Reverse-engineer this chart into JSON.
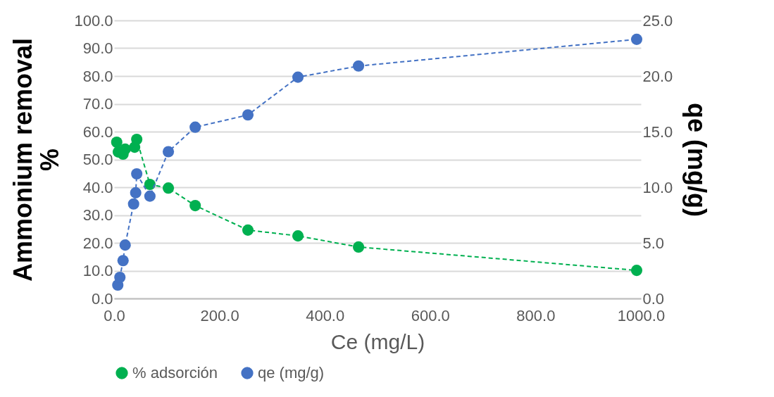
{
  "chart_data": {
    "type": "line",
    "xlabel": "Ce (mg/L)",
    "ylabel": "Ammonium removal\n%",
    "y2label": "qe (mg/g)",
    "xlim": [
      0,
      1000
    ],
    "xticks": [
      {
        "value": 0,
        "label": "0.0"
      },
      {
        "value": 200,
        "label": "200.0"
      },
      {
        "value": 400,
        "label": "400.0"
      },
      {
        "value": 600,
        "label": "600.0"
      },
      {
        "value": 800,
        "label": "800.0"
      },
      {
        "value": 1000,
        "label": "1000.0"
      }
    ],
    "ylim": [
      0,
      100
    ],
    "yticks": [
      {
        "value": 0,
        "label": "0.0"
      },
      {
        "value": 10,
        "label": "10.0"
      },
      {
        "value": 20,
        "label": "20.0"
      },
      {
        "value": 30,
        "label": "30.0"
      },
      {
        "value": 40,
        "label": "40.0"
      },
      {
        "value": 50,
        "label": "50.0"
      },
      {
        "value": 60,
        "label": "60.0"
      },
      {
        "value": 70,
        "label": "70.0"
      },
      {
        "value": 80,
        "label": "80.0"
      },
      {
        "value": 90,
        "label": "90.0"
      },
      {
        "value": 100,
        "label": "100.0"
      }
    ],
    "y2lim": [
      0,
      25
    ],
    "y2ticks": [
      {
        "value": 0,
        "label": "0.0"
      },
      {
        "value": 5,
        "label": "5.0"
      },
      {
        "value": 10,
        "label": "10.0"
      },
      {
        "value": 15,
        "label": "15.0"
      },
      {
        "value": 20,
        "label": "20.0"
      },
      {
        "value": 25,
        "label": "25.0"
      }
    ],
    "grid": "y",
    "legend": "bottom",
    "marker": "circle",
    "line_style": "dashed",
    "series": [
      {
        "name": "% adsorción",
        "color": "#00b050",
        "x": [
          5,
          8,
          17,
          21,
          39,
          43,
          68,
          103,
          154,
          254,
          349,
          464,
          992
        ],
        "values": [
          56.2,
          52.7,
          51.9,
          53.7,
          54.4,
          57.2,
          41.0,
          39.7,
          33.4,
          24.6,
          22.5,
          18.5,
          10.1
        ]
      },
      {
        "name": "qe (mg/g)",
        "color": "#4472c4",
        "axis": "y2",
        "x": [
          7,
          11,
          17,
          21,
          37,
          41,
          43,
          68,
          103,
          154,
          254,
          349,
          464,
          992
        ],
        "values": [
          1.2,
          1.9,
          3.4,
          4.8,
          8.5,
          9.5,
          11.2,
          9.2,
          13.2,
          15.4,
          16.5,
          19.9,
          20.9,
          23.3
        ]
      }
    ]
  }
}
